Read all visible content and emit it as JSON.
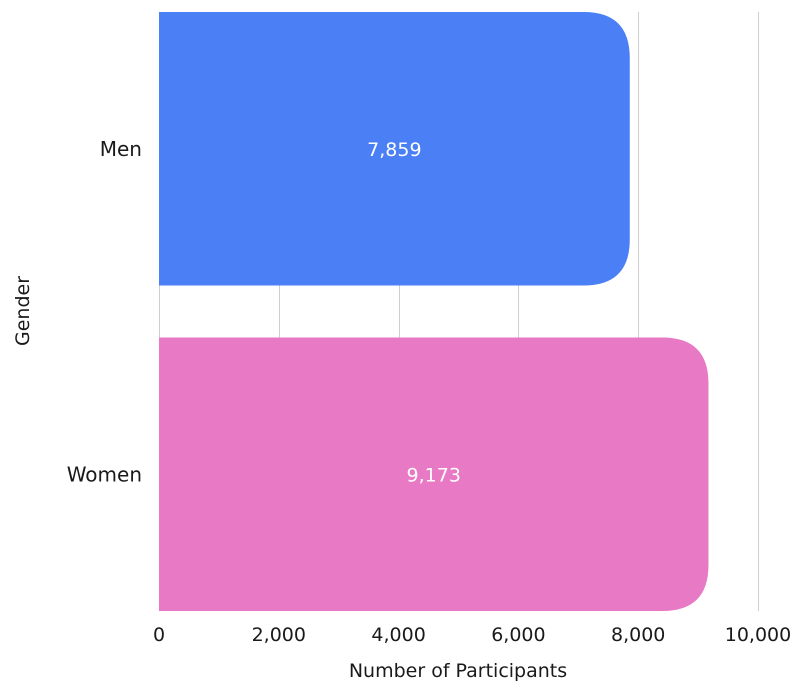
{
  "chart_data": {
    "type": "bar",
    "orientation": "horizontal",
    "categories": [
      "Men",
      "Women"
    ],
    "values": [
      7859,
      9173
    ],
    "value_labels": [
      "7,859",
      "9,173"
    ],
    "colors": [
      "#4a7ff5",
      "#e879c4"
    ],
    "xlabel": "Number of Participants",
    "ylabel": "Gender",
    "xlim": [
      0,
      10000
    ],
    "x_ticks": [
      0,
      2000,
      4000,
      6000,
      8000,
      10000
    ],
    "x_tick_labels": [
      "0",
      "2,000",
      "4,000",
      "6,000",
      "8,000",
      "10,000"
    ],
    "grid": "vertical",
    "legend": "none"
  }
}
